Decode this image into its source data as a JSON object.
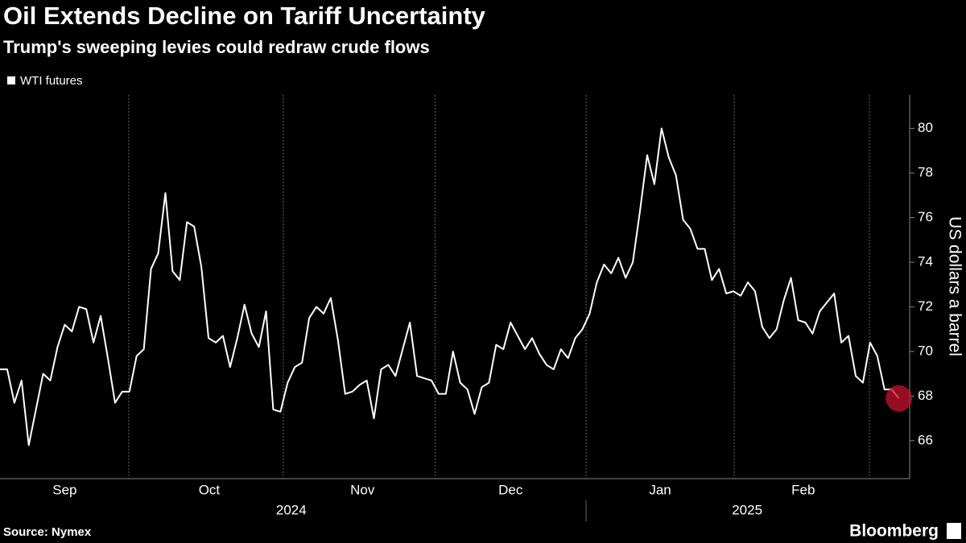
{
  "chart_data": {
    "type": "line",
    "title": "Oil Extends Decline on Tariff Uncertainty",
    "subtitle": "Trump's sweeping levies could redraw crude flows",
    "y_label": "US dollars a barrel",
    "source": "Source: Nymex",
    "brand": "Bloomberg",
    "series": [
      {
        "name": "WTI futures",
        "color": "#ffffff",
        "values": [
          69.2,
          69.2,
          67.7,
          68.7,
          65.8,
          67.4,
          69.0,
          68.7,
          70.2,
          71.2,
          70.9,
          72.0,
          71.9,
          70.4,
          71.6,
          69.7,
          67.7,
          68.2,
          68.2,
          69.8,
          70.1,
          73.7,
          74.4,
          77.1,
          73.6,
          73.2,
          75.8,
          75.6,
          73.8,
          70.6,
          70.4,
          70.7,
          69.3,
          70.6,
          72.1,
          70.8,
          70.2,
          71.8,
          67.4,
          67.3,
          68.6,
          69.3,
          69.5,
          71.5,
          72.0,
          71.7,
          72.4,
          70.5,
          68.1,
          68.2,
          68.5,
          68.7,
          67.0,
          69.2,
          69.4,
          68.9,
          70.1,
          71.3,
          68.9,
          68.8,
          68.7,
          68.1,
          68.1,
          70.0,
          68.6,
          68.3,
          67.2,
          68.4,
          68.6,
          70.3,
          70.1,
          71.3,
          70.7,
          70.1,
          70.6,
          69.9,
          69.4,
          69.2,
          70.1,
          69.7,
          70.6,
          71.0,
          71.7,
          73.1,
          73.9,
          73.5,
          74.2,
          73.3,
          74.0,
          76.3,
          78.8,
          77.5,
          80.0,
          78.7,
          77.9,
          75.9,
          75.5,
          74.6,
          74.6,
          73.2,
          73.7,
          72.6,
          72.7,
          72.5,
          73.1,
          72.7,
          71.1,
          70.6,
          71.0,
          72.3,
          73.3,
          71.4,
          71.3,
          70.8,
          71.8,
          72.2,
          72.6,
          70.4,
          70.7,
          68.9,
          68.6,
          70.4,
          69.8,
          68.3,
          68.3,
          67.9
        ]
      }
    ],
    "highlight_last": true,
    "highlight_color": "#c8102e",
    "xlim": [
      0,
      126.5
    ],
    "xticks": [
      {
        "value": 9.0,
        "label": "Sep"
      },
      {
        "value": 29.1,
        "label": "Oct"
      },
      {
        "value": 50.4,
        "label": "Nov"
      },
      {
        "value": 71.0,
        "label": "Dec"
      },
      {
        "value": 91.8,
        "label": "Jan"
      },
      {
        "value": 111.7,
        "label": "Feb"
      }
    ],
    "xgrid": [
      17.9,
      39.4,
      60.5,
      81.5,
      102.1,
      120.9
    ],
    "years": [
      {
        "value": 40.5,
        "label": "2024"
      },
      {
        "value": 103.9,
        "label": "2025"
      }
    ],
    "ylim": [
      64.3,
      81.5
    ],
    "yticks": [
      66,
      68,
      70,
      72,
      74,
      76,
      78,
      80
    ],
    "grid": true,
    "legend": "top-left"
  }
}
